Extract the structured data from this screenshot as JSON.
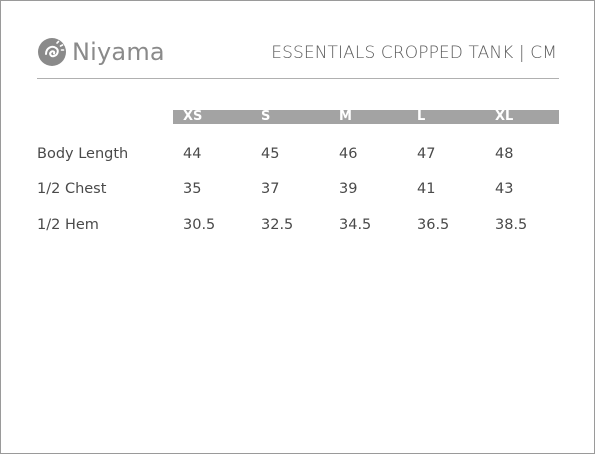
{
  "brand": {
    "name": "Niyama"
  },
  "document": {
    "title": "ESSENTIALS CROPPED TANK | CM"
  },
  "size_chart": {
    "sizes": [
      "XS",
      "S",
      "M",
      "L",
      "XL"
    ],
    "rows": [
      {
        "label": "Body Length",
        "values": [
          "44",
          "45",
          "46",
          "47",
          "48"
        ]
      },
      {
        "label": "1/2 Chest",
        "values": [
          "35",
          "37",
          "39",
          "41",
          "43"
        ]
      },
      {
        "label": "1/2 Hem",
        "values": [
          "30.5",
          "32.5",
          "34.5",
          "36.5",
          "38.5"
        ]
      }
    ]
  },
  "colors": {
    "header_bar": "#a3a3a3",
    "text": "#4a4a4a",
    "logo": "#8a8a8a"
  }
}
